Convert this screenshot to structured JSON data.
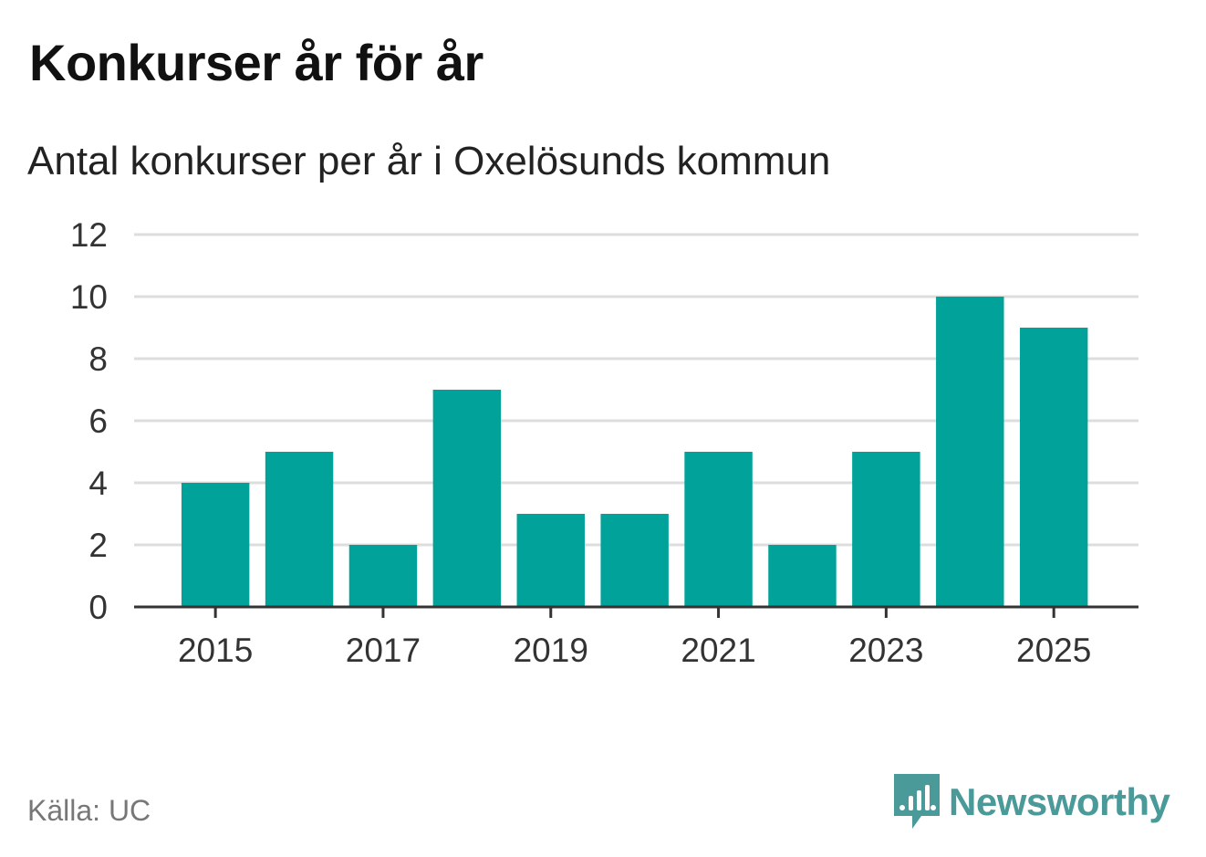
{
  "title": "Konkurser år för år",
  "subtitle": "Antal konkurser per år i Oxelösunds kommun",
  "source": "Källa: UC",
  "brand": {
    "name": "Newsworthy",
    "icon": "newsworthy-logo-icon",
    "color": "#4a9a99"
  },
  "colors": {
    "bar": "#00a29a",
    "grid": "#dddddd",
    "axis": "#333333"
  },
  "chart_data": {
    "type": "bar",
    "categories": [
      "2015",
      "2016",
      "2017",
      "2018",
      "2019",
      "2020",
      "2021",
      "2022",
      "2023",
      "2024",
      "2025"
    ],
    "values": [
      4,
      5,
      2,
      7,
      3,
      3,
      5,
      2,
      5,
      10,
      9
    ],
    "x_tick_labels": [
      "2015",
      "2017",
      "2019",
      "2021",
      "2023",
      "2025"
    ],
    "y_ticks": [
      0,
      2,
      4,
      6,
      8,
      10,
      12
    ],
    "ylim": [
      0,
      12
    ],
    "xlabel": "",
    "ylabel": "",
    "grid": true,
    "legend": "none"
  }
}
